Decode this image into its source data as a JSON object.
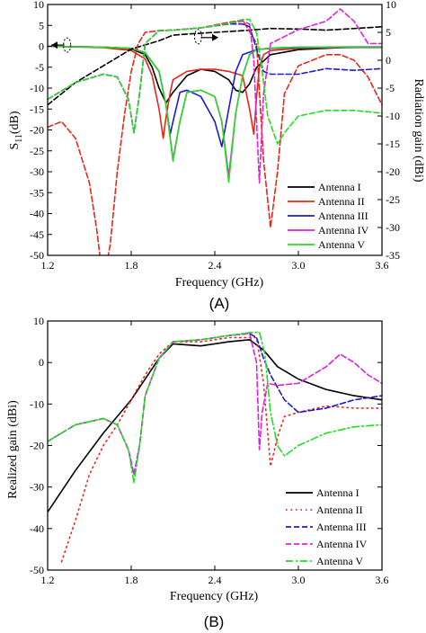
{
  "chart_data": [
    {
      "type": "line",
      "panel_label": "(A)",
      "xlabel": "Frequency (GHz)",
      "ylabel": "S11(dB)",
      "ylabel_base": "S",
      "ylabel_sub": "11",
      "ylabel_tail": "(dB)",
      "y2label": "Radiation gain (dBi)",
      "xlim": [
        1.2,
        3.6
      ],
      "ylim": [
        -50,
        10
      ],
      "y2lim": [
        -35,
        10
      ],
      "x_ticks": [
        "1.2",
        "1.8",
        "2.4",
        "3.0",
        "3.6"
      ],
      "y_ticks": [
        "10",
        "5",
        "0",
        "-5",
        "-10",
        "-15",
        "-20",
        "-25",
        "-30",
        "-35",
        "-40",
        "-45",
        "-50"
      ],
      "y2_ticks": [
        "10",
        "5",
        "0",
        "-5",
        "-10",
        "-15",
        "-20",
        "-25",
        "-30",
        "-35"
      ],
      "legend_position": "bottom-right",
      "annotations": [
        "arrow pointing to left axis (S11 curves, solid)",
        "arrow pointing to right axis (gain curves, dashed)"
      ],
      "series": [
        {
          "name": "Antenna I",
          "color": "#000000",
          "style": "solid",
          "axis": "left",
          "x": [
            1.2,
            1.6,
            1.8,
            1.9,
            1.95,
            2.0,
            2.05,
            2.1,
            2.2,
            2.3,
            2.4,
            2.5,
            2.55,
            2.6,
            2.65,
            2.7,
            2.8,
            3.0,
            3.3,
            3.6
          ],
          "y": [
            0,
            -0.2,
            -0.6,
            -2,
            -5,
            -10,
            -13.5,
            -11,
            -7,
            -5.5,
            -6,
            -8,
            -10.5,
            -11,
            -9,
            -5,
            -2,
            -0.8,
            -0.3,
            -0.2
          ]
        },
        {
          "name": "Antenna II",
          "color": "#e8261a",
          "style": "solid",
          "axis": "left",
          "x": [
            1.2,
            1.6,
            1.8,
            1.9,
            1.95,
            2.0,
            2.03,
            2.05,
            2.08,
            2.1,
            2.2,
            2.3,
            2.4,
            2.5,
            2.6,
            2.65,
            2.68,
            2.7,
            2.72,
            2.75,
            2.8,
            3.0,
            3.3,
            3.6
          ],
          "y": [
            0,
            -0.3,
            -1,
            -3,
            -7,
            -15,
            -22,
            -17,
            -11,
            -8,
            -6,
            -5.5,
            -5.5,
            -6,
            -7,
            -15,
            -21,
            -12,
            -5,
            -2,
            -1,
            -0.5,
            -0.3,
            -0.2
          ]
        },
        {
          "name": "Antenna III",
          "color": "#1c1ccc",
          "style": "solid",
          "axis": "left",
          "x": [
            1.2,
            1.6,
            1.8,
            1.9,
            2.0,
            2.05,
            2.08,
            2.1,
            2.15,
            2.2,
            2.3,
            2.4,
            2.45,
            2.5,
            2.55,
            2.6,
            2.7,
            2.8,
            3.0,
            3.6
          ],
          "y": [
            0,
            -0.2,
            -0.5,
            -1.5,
            -6,
            -14,
            -21,
            -18,
            -11,
            -10.5,
            -12,
            -18,
            -24,
            -15,
            -6,
            -2,
            -0.8,
            -0.5,
            -0.3,
            -0.2
          ]
        },
        {
          "name": "Antenna IV",
          "color": "#e020e0",
          "style": "solid",
          "axis": "left",
          "x": [
            1.2,
            1.6,
            1.8,
            1.9,
            2.0,
            2.05,
            2.1,
            2.15,
            2.2,
            2.3,
            2.4,
            2.45,
            2.5,
            2.55,
            2.6,
            2.65,
            2.7,
            2.8,
            3.0,
            3.6
          ],
          "y": [
            0,
            -0.2,
            -0.5,
            -1.5,
            -6,
            -14,
            -27,
            -18,
            -11,
            -10.5,
            -12,
            -18,
            -31,
            -16,
            -7,
            -2,
            -0.8,
            -0.4,
            -0.2,
            -0.1
          ]
        },
        {
          "name": "Antenna V",
          "color": "#22dd22",
          "style": "solid",
          "axis": "left",
          "x": [
            1.2,
            1.6,
            1.8,
            1.9,
            2.0,
            2.05,
            2.1,
            2.15,
            2.2,
            2.3,
            2.4,
            2.45,
            2.5,
            2.55,
            2.6,
            2.65,
            2.7,
            2.8,
            3.0,
            3.6
          ],
          "y": [
            0,
            -0.2,
            -0.5,
            -1.5,
            -6,
            -14,
            -27.5,
            -18,
            -11,
            -10.5,
            -12,
            -18,
            -32.5,
            -16,
            -7,
            -2,
            -0.8,
            -0.4,
            -0.2,
            -0.1
          ]
        },
        {
          "name": "Antenna I gain",
          "color": "#000000",
          "style": "dashed",
          "axis": "right",
          "x": [
            1.2,
            1.4,
            1.6,
            1.8,
            2.0,
            2.1,
            2.2,
            2.4,
            2.6,
            2.8,
            3.0,
            3.2,
            3.4,
            3.6
          ],
          "y": [
            -8,
            -4,
            -1,
            2,
            3.5,
            4.5,
            4.7,
            5,
            5.3,
            5.7,
            5.6,
            5.4,
            5.7,
            6
          ]
        },
        {
          "name": "Antenna II gain",
          "color": "#e8261a",
          "style": "dashed",
          "axis": "right",
          "x": [
            1.2,
            1.3,
            1.4,
            1.5,
            1.55,
            1.6,
            1.65,
            1.7,
            1.75,
            1.8,
            1.85,
            1.9,
            2.0,
            2.1,
            2.3,
            2.5,
            2.6,
            2.7,
            2.75,
            2.8,
            2.85,
            2.9,
            3.0,
            3.1,
            3.2,
            3.3,
            3.4,
            3.5,
            3.6
          ],
          "y": [
            -12,
            -11,
            -14,
            -22,
            -30,
            -40,
            -33,
            -20,
            -10,
            -2,
            3,
            5,
            5.3,
            5.4,
            5.8,
            6.8,
            7.2,
            3,
            -18,
            -30,
            -20,
            -6,
            -1,
            0,
            1,
            1,
            0,
            -3,
            -8
          ]
        },
        {
          "name": "Antenna III gain",
          "color": "#1c1ccc",
          "style": "dashed",
          "axis": "right",
          "x": [
            1.2,
            1.4,
            1.6,
            1.7,
            1.78,
            1.82,
            1.86,
            1.9,
            2.0,
            2.1,
            2.3,
            2.5,
            2.6,
            2.65,
            2.7,
            2.75,
            2.8,
            3.0,
            3.2,
            3.4,
            3.6
          ],
          "y": [
            -7,
            -4,
            -2.5,
            -3,
            -7,
            -13,
            -6,
            3,
            5.3,
            5.4,
            5.8,
            6.5,
            6.5,
            6,
            2,
            -2,
            -2.5,
            -2.5,
            -1.5,
            -1.8,
            -1.5
          ]
        },
        {
          "name": "Antenna IV gain",
          "color": "#e020e0",
          "style": "dashed",
          "axis": "right",
          "x": [
            1.2,
            1.4,
            1.6,
            1.7,
            1.78,
            1.82,
            1.86,
            1.9,
            2.0,
            2.1,
            2.3,
            2.5,
            2.6,
            2.65,
            2.68,
            2.72,
            2.75,
            2.8,
            3.0,
            3.2,
            3.3,
            3.4,
            3.5,
            3.6
          ],
          "y": [
            -7,
            -4,
            -2.5,
            -3,
            -7,
            -13,
            -6,
            3,
            5.3,
            5.4,
            5.8,
            6.6,
            7,
            6.5,
            0,
            -22,
            -6,
            3,
            5.5,
            7,
            9.2,
            7,
            3,
            3
          ]
        },
        {
          "name": "Antenna V gain",
          "color": "#22dd22",
          "style": "dashed",
          "axis": "right",
          "x": [
            1.2,
            1.4,
            1.6,
            1.7,
            1.78,
            1.82,
            1.86,
            1.9,
            2.0,
            2.1,
            2.3,
            2.5,
            2.6,
            2.65,
            2.7,
            2.73,
            2.78,
            2.85,
            2.9,
            3.0,
            3.2,
            3.4,
            3.6
          ],
          "y": [
            -7,
            -4,
            -2.5,
            -3,
            -7,
            -13,
            -6,
            3,
            5.3,
            5.4,
            5.8,
            6.6,
            7.3,
            7.3,
            5,
            0,
            -10,
            -15,
            -13,
            -10,
            -9,
            -9,
            -9.5
          ]
        }
      ],
      "legend": [
        "Antenna I",
        "Antenna II",
        "Antenna III",
        "Antenna IV",
        "Antenna V"
      ]
    },
    {
      "type": "line",
      "panel_label": "(B)",
      "xlabel": "Frequency (GHz)",
      "ylabel": "Realized gain (dBi)",
      "xlim": [
        1.2,
        3.6
      ],
      "ylim": [
        -50,
        10
      ],
      "x_ticks": [
        "1.2",
        "1.8",
        "2.4",
        "3.0",
        "3.6"
      ],
      "y_ticks": [
        "10",
        "0",
        "-10",
        "-20",
        "-30",
        "-40",
        "-50"
      ],
      "legend_position": "bottom-right",
      "series": [
        {
          "name": "Antenna I",
          "color": "#000000",
          "style": "solid",
          "x": [
            1.2,
            1.4,
            1.6,
            1.8,
            1.9,
            2.0,
            2.1,
            2.3,
            2.5,
            2.65,
            2.75,
            2.85,
            3.0,
            3.2,
            3.4,
            3.6
          ],
          "y": [
            -36,
            -26,
            -17,
            -9,
            -4,
            1,
            4.5,
            4,
            5,
            5.5,
            3,
            -1,
            -4,
            -6.5,
            -8,
            -9
          ]
        },
        {
          "name": "Antenna II",
          "color": "#e8261a",
          "style": "dotted",
          "x": [
            1.3,
            1.4,
            1.5,
            1.6,
            1.7,
            1.8,
            1.9,
            2.0,
            2.1,
            2.3,
            2.5,
            2.7,
            2.75,
            2.8,
            2.85,
            2.9,
            3.0,
            3.2,
            3.4,
            3.6
          ],
          "y": [
            -48,
            -38,
            -27,
            -20,
            -15,
            -9,
            -3,
            2,
            5,
            5,
            6,
            6,
            -5,
            -25,
            -18,
            -13,
            -12,
            -10.5,
            -11,
            -11
          ]
        },
        {
          "name": "Antenna III",
          "color": "#1c1ccc",
          "style": "dashed",
          "x": [
            1.2,
            1.4,
            1.6,
            1.7,
            1.78,
            1.82,
            1.86,
            1.9,
            2.0,
            2.1,
            2.3,
            2.5,
            2.65,
            2.7,
            2.75,
            2.8,
            2.9,
            3.0,
            3.2,
            3.4,
            3.6
          ],
          "y": [
            -19,
            -15,
            -13.5,
            -15,
            -21,
            -27,
            -20,
            -8,
            1,
            5,
            5.5,
            6.5,
            7,
            6,
            1,
            -3,
            -9,
            -12,
            -11,
            -9,
            -8
          ]
        },
        {
          "name": "Antenna IV",
          "color": "#e020e0",
          "style": "dashed",
          "x": [
            1.2,
            1.4,
            1.6,
            1.7,
            1.78,
            1.82,
            1.86,
            1.9,
            2.0,
            2.1,
            2.3,
            2.5,
            2.65,
            2.7,
            2.72,
            2.74,
            2.78,
            2.85,
            3.0,
            3.2,
            3.3,
            3.4,
            3.5,
            3.6
          ],
          "y": [
            -19,
            -15,
            -13.5,
            -15,
            -21,
            -27,
            -20,
            -8,
            1,
            5,
            5.5,
            6.5,
            7,
            0,
            -21,
            -12,
            -5,
            -5.5,
            -5,
            -1,
            2,
            0,
            -3,
            -5
          ]
        },
        {
          "name": "Antenna V",
          "color": "#22dd22",
          "style": "dashdot",
          "x": [
            1.2,
            1.4,
            1.6,
            1.7,
            1.78,
            1.82,
            1.86,
            1.9,
            2.0,
            2.1,
            2.3,
            2.5,
            2.65,
            2.72,
            2.76,
            2.8,
            2.85,
            2.9,
            3.0,
            3.2,
            3.4,
            3.6
          ],
          "y": [
            -19,
            -15,
            -13.5,
            -15,
            -21,
            -29,
            -20,
            -8,
            1,
            5,
            5.5,
            6.5,
            7.2,
            7.3,
            2,
            -12,
            -20,
            -22.5,
            -20,
            -17,
            -15.5,
            -15
          ]
        }
      ],
      "legend": [
        "Antenna I",
        "Antenna II",
        "Antenna III",
        "Antenna IV",
        "Antenna V"
      ]
    }
  ]
}
